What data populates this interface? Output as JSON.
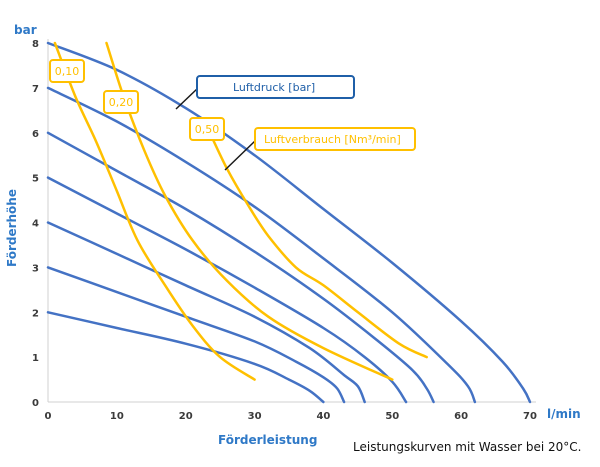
{
  "chart_data": {
    "type": "line",
    "xlabel": "Förderleistung",
    "ylabel": "Förderhöhe",
    "x_unit": "l/min",
    "y_unit": "bar",
    "xlim": [
      0,
      70
    ],
    "ylim": [
      0,
      8
    ],
    "x_ticks": [
      0,
      10,
      20,
      30,
      40,
      50,
      60,
      70
    ],
    "y_ticks": [
      0,
      1,
      2,
      3,
      4,
      5,
      6,
      7,
      8
    ],
    "grid": "none",
    "caption": "Leistungskurven mit Wasser bei 20°C.",
    "colors": {
      "pressure": "#4472c4",
      "consumption": "#ffc000",
      "axis_text": "#2f79c7"
    },
    "pressure_series": [
      {
        "values": [
          [
            0,
            8.0
          ],
          [
            10,
            7.4
          ],
          [
            20,
            6.55
          ],
          [
            30,
            5.5
          ],
          [
            40,
            4.3
          ],
          [
            50,
            3.1
          ],
          [
            60,
            1.8
          ],
          [
            66,
            0.9
          ],
          [
            69,
            0.3
          ],
          [
            70,
            0
          ]
        ]
      },
      {
        "values": [
          [
            0,
            7.0
          ],
          [
            10,
            6.25
          ],
          [
            20,
            5.35
          ],
          [
            30,
            4.35
          ],
          [
            40,
            3.2
          ],
          [
            50,
            2.0
          ],
          [
            58,
            0.85
          ],
          [
            61,
            0.35
          ],
          [
            62,
            0
          ]
        ]
      },
      {
        "values": [
          [
            0,
            6.0
          ],
          [
            10,
            5.15
          ],
          [
            20,
            4.3
          ],
          [
            30,
            3.35
          ],
          [
            40,
            2.3
          ],
          [
            48,
            1.35
          ],
          [
            53,
            0.7
          ],
          [
            55,
            0.3
          ],
          [
            56,
            0
          ]
        ]
      },
      {
        "values": [
          [
            0,
            5.0
          ],
          [
            10,
            4.2
          ],
          [
            20,
            3.4
          ],
          [
            30,
            2.55
          ],
          [
            40,
            1.65
          ],
          [
            46,
            1.0
          ],
          [
            50,
            0.45
          ],
          [
            52,
            0
          ]
        ]
      },
      {
        "values": [
          [
            0,
            4.0
          ],
          [
            10,
            3.3
          ],
          [
            20,
            2.6
          ],
          [
            30,
            1.9
          ],
          [
            38,
            1.2
          ],
          [
            43,
            0.6
          ],
          [
            45,
            0.35
          ],
          [
            46,
            0
          ]
        ]
      },
      {
        "values": [
          [
            0,
            3.0
          ],
          [
            10,
            2.45
          ],
          [
            20,
            1.9
          ],
          [
            30,
            1.35
          ],
          [
            36,
            0.9
          ],
          [
            40,
            0.55
          ],
          [
            42,
            0.3
          ],
          [
            43,
            0
          ]
        ]
      },
      {
        "values": [
          [
            0,
            2.0
          ],
          [
            10,
            1.65
          ],
          [
            20,
            1.3
          ],
          [
            30,
            0.85
          ],
          [
            35,
            0.5
          ],
          [
            38,
            0.25
          ],
          [
            40,
            0
          ]
        ]
      }
    ],
    "consumption_series": [
      {
        "label": "0,10",
        "values": [
          [
            1,
            8.0
          ],
          [
            4,
            6.8
          ],
          [
            7,
            5.8
          ],
          [
            10,
            4.7
          ],
          [
            13,
            3.6
          ],
          [
            17,
            2.6
          ],
          [
            21,
            1.7
          ],
          [
            25,
            1.0
          ],
          [
            30,
            0.5
          ]
        ]
      },
      {
        "label": "0,20",
        "values": [
          [
            8.5,
            8.0
          ],
          [
            11,
            6.8
          ],
          [
            14,
            5.6
          ],
          [
            17,
            4.6
          ],
          [
            21,
            3.6
          ],
          [
            26,
            2.7
          ],
          [
            32,
            1.9
          ],
          [
            40,
            1.2
          ],
          [
            50,
            0.5
          ]
        ]
      },
      {
        "label": "0,50",
        "values": [
          [
            23.5,
            6.0
          ],
          [
            26,
            5.2
          ],
          [
            29,
            4.4
          ],
          [
            32,
            3.7
          ],
          [
            36,
            3.0
          ],
          [
            40,
            2.6
          ],
          [
            45,
            2.0
          ],
          [
            51,
            1.3
          ],
          [
            55,
            1.0
          ]
        ]
      }
    ],
    "annotations": [
      {
        "text": "Luftdruck [bar]",
        "color": "#1f5fa8"
      },
      {
        "text": "Luftverbrauch [Nm³/min]",
        "color": "#ffc000"
      }
    ]
  }
}
